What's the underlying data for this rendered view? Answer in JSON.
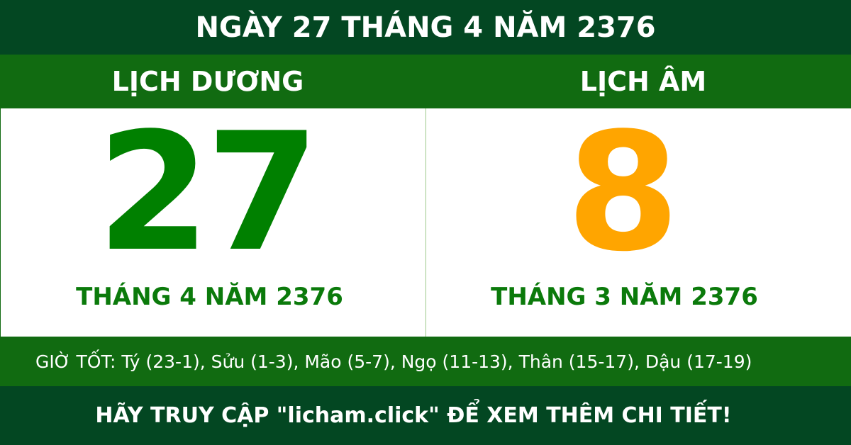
{
  "header": {
    "title": "NGÀY 27 THÁNG 4 NĂM 2376"
  },
  "solar": {
    "label": "LỊCH DƯƠNG",
    "day": "27",
    "month_year": "THÁNG 4 NĂM 2376"
  },
  "lunar": {
    "label": "LỊCH ÂM",
    "day": "8",
    "month_year": "THÁNG 3 NĂM 2376"
  },
  "good_hours": "GIỜ TỐT: Tý (23-1), Sửu (1-3), Mão (5-7), Ngọ (11-13), Thân (15-17), Dậu (17-19)",
  "footer": "HÃY TRUY CẬP \"licham.click\" ĐỂ XEM THÊM CHI TIẾT!",
  "colors": {
    "dark_green": "#034722",
    "band_green": "#116b11",
    "solar_number": "#008000",
    "lunar_number": "#ffa500"
  }
}
